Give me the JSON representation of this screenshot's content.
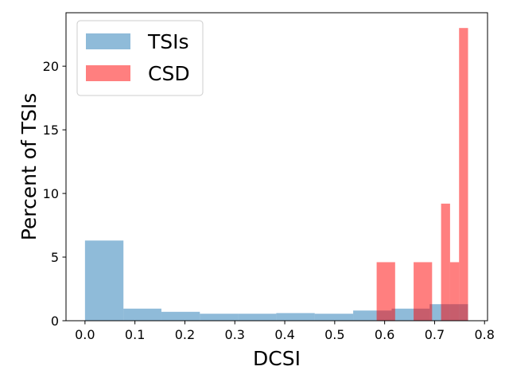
{
  "chart_data": {
    "type": "bar",
    "title": "",
    "xlabel": "DCSI",
    "ylabel": "Percent of TSIs",
    "xlim": [
      -0.038,
      0.806
    ],
    "ylim": [
      0,
      24.2
    ],
    "xticks": [
      0.0,
      0.1,
      0.2,
      0.3,
      0.4,
      0.5,
      0.6,
      0.7,
      0.8
    ],
    "xtick_labels": [
      "0.0",
      "0.1",
      "0.2",
      "0.3",
      "0.4",
      "0.5",
      "0.6",
      "0.7",
      "0.8"
    ],
    "yticks": [
      0,
      5,
      10,
      15,
      20
    ],
    "ytick_labels": [
      "0",
      "5",
      "10",
      "15",
      "20"
    ],
    "grid": false,
    "legend_position": "top-left",
    "series": [
      {
        "name": "TSIs",
        "color": "#1f77b4",
        "opacity": 0.5,
        "bins": [
          {
            "x0": 0.0,
            "x1": 0.077,
            "value": 6.3
          },
          {
            "x0": 0.077,
            "x1": 0.153,
            "value": 0.95
          },
          {
            "x0": 0.153,
            "x1": 0.23,
            "value": 0.7
          },
          {
            "x0": 0.23,
            "x1": 0.307,
            "value": 0.55
          },
          {
            "x0": 0.307,
            "x1": 0.383,
            "value": 0.55
          },
          {
            "x0": 0.383,
            "x1": 0.46,
            "value": 0.6
          },
          {
            "x0": 0.46,
            "x1": 0.537,
            "value": 0.55
          },
          {
            "x0": 0.537,
            "x1": 0.614,
            "value": 0.8
          },
          {
            "x0": 0.614,
            "x1": 0.69,
            "value": 0.95
          },
          {
            "x0": 0.69,
            "x1": 0.767,
            "value": 1.3
          }
        ]
      },
      {
        "name": "CSD",
        "color": "#ff0000",
        "opacity": 0.5,
        "bins": [
          {
            "x0": 0.584,
            "x1": 0.621,
            "value": 4.6
          },
          {
            "x0": 0.658,
            "x1": 0.695,
            "value": 4.6
          },
          {
            "x0": 0.713,
            "x1": 0.731,
            "value": 9.2
          },
          {
            "x0": 0.731,
            "x1": 0.749,
            "value": 4.6
          },
          {
            "x0": 0.749,
            "x1": 0.767,
            "value": 23.0
          }
        ]
      }
    ]
  }
}
